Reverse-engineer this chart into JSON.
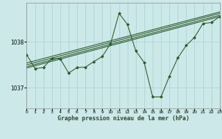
{
  "title": "Graphe pression niveau de la mer (hPa)",
  "bg_color": "#cce8e8",
  "grid_color": "#aad4d4",
  "line_color": "#2d5a2d",
  "marker_color": "#2d5a2d",
  "xlim": [
    0,
    23
  ],
  "ylim": [
    1036.55,
    1038.85
  ],
  "yticks": [
    1037,
    1038
  ],
  "xticks": [
    0,
    1,
    2,
    3,
    4,
    5,
    6,
    7,
    8,
    9,
    10,
    11,
    12,
    13,
    14,
    15,
    16,
    17,
    18,
    19,
    20,
    21,
    22,
    23
  ],
  "main_series": [
    [
      0,
      1037.72
    ],
    [
      1,
      1037.42
    ],
    [
      2,
      1037.44
    ],
    [
      3,
      1037.64
    ],
    [
      4,
      1037.63
    ],
    [
      5,
      1037.32
    ],
    [
      6,
      1037.44
    ],
    [
      7,
      1037.45
    ],
    [
      8,
      1037.57
    ],
    [
      9,
      1037.68
    ],
    [
      10,
      1037.96
    ],
    [
      11,
      1038.62
    ],
    [
      12,
      1038.38
    ],
    [
      13,
      1037.8
    ],
    [
      14,
      1037.55
    ],
    [
      15,
      1036.8
    ],
    [
      16,
      1036.8
    ],
    [
      17,
      1037.25
    ],
    [
      18,
      1037.65
    ],
    [
      19,
      1037.92
    ],
    [
      20,
      1038.1
    ],
    [
      21,
      1038.4
    ],
    [
      22,
      1038.42
    ],
    [
      23,
      1038.55
    ]
  ],
  "trend_lines": [
    [
      [
        0,
        1037.46
      ],
      [
        23,
        1038.58
      ]
    ],
    [
      [
        0,
        1037.5
      ],
      [
        23,
        1038.62
      ]
    ],
    [
      [
        0,
        1037.54
      ],
      [
        23,
        1038.65
      ]
    ],
    [
      [
        0,
        1037.43
      ],
      [
        23,
        1038.55
      ]
    ]
  ]
}
